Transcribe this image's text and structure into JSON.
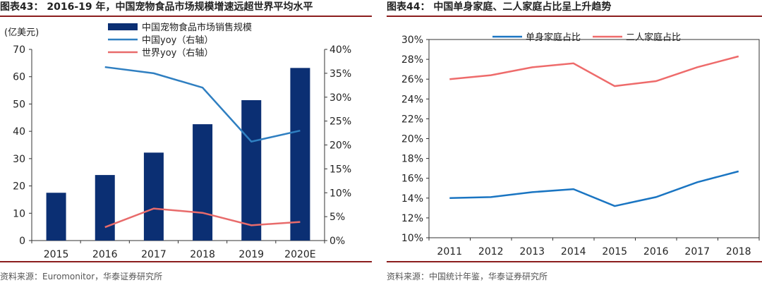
{
  "left": {
    "title": "图表43： 2016-19 年，中国宠物食品市场规模增速远超世界平均水平",
    "source": "资料来源：Euromonitor，华泰证券研究所"
  },
  "right": {
    "title": "图表44： 中国单身家庭、二人家庭占比呈上升趋势",
    "source": "资料来源：中国统计年鉴，华泰证券研究所"
  },
  "chart_data": [
    {
      "type": "bar",
      "title": "2016-19 年，中国宠物食品市场规模增速远超世界平均水平",
      "unit_label": "(亿美元)",
      "categories": [
        "2015",
        "2016",
        "2017",
        "2018",
        "2019",
        "2020E"
      ],
      "ylim": [
        0,
        70
      ],
      "yticks": [
        0,
        10,
        20,
        30,
        40,
        50,
        60,
        70
      ],
      "y2lim": [
        0,
        40
      ],
      "y2ticks": [
        "0%",
        "5%",
        "10%",
        "15%",
        "20%",
        "25%",
        "30%",
        "35%",
        "40%"
      ],
      "grid": false,
      "legend_position": "top",
      "series": [
        {
          "name": "中国宠物食品市场销售规模",
          "type": "bar",
          "axis": "left",
          "color": "#0b2f73",
          "values": [
            17.5,
            24,
            32.2,
            42.6,
            51.4,
            63.2
          ]
        },
        {
          "name": "中国yoy（右轴）",
          "type": "line",
          "axis": "right",
          "color": "#2f7fc1",
          "values": [
            null,
            36.3,
            35,
            32,
            20.7,
            23
          ]
        },
        {
          "name": "世界yoy（右轴）",
          "type": "line",
          "axis": "right",
          "color": "#e86b6b",
          "values": [
            null,
            2.8,
            6.7,
            5.8,
            3.2,
            3.9
          ]
        }
      ]
    },
    {
      "type": "line",
      "title": "中国单身家庭、二人家庭占比呈上升趋势",
      "categories": [
        "2011",
        "2012",
        "2013",
        "2014",
        "2015",
        "2016",
        "2017",
        "2018"
      ],
      "ylim": [
        10,
        30
      ],
      "yticks": [
        "10%",
        "12%",
        "14%",
        "16%",
        "18%",
        "20%",
        "22%",
        "24%",
        "26%",
        "28%",
        "30%"
      ],
      "grid": false,
      "legend_position": "top",
      "series": [
        {
          "name": "单身家庭占比",
          "color": "#1a75c2",
          "values": [
            14.0,
            14.1,
            14.6,
            14.9,
            13.2,
            14.1,
            15.6,
            16.7
          ]
        },
        {
          "name": "二人家庭占比",
          "color": "#ee6b6b",
          "values": [
            26.0,
            26.4,
            27.2,
            27.6,
            25.3,
            25.8,
            27.2,
            28.3
          ]
        }
      ]
    }
  ]
}
